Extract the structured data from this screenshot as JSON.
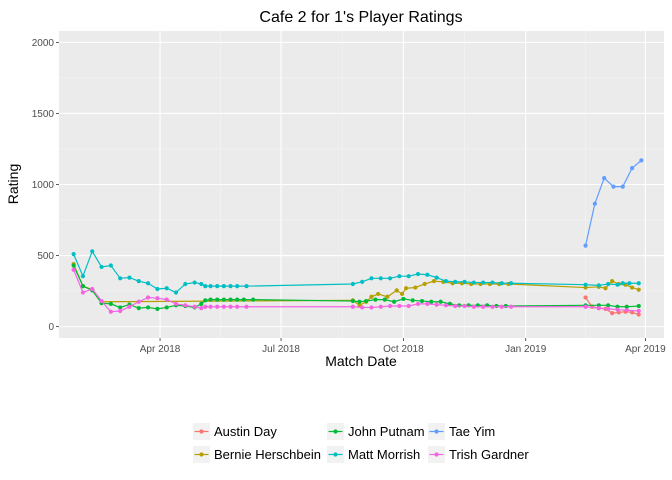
{
  "chart_data": {
    "type": "line",
    "title": "Cafe 2 for 1's Player Ratings",
    "xlabel": "Match Date",
    "ylabel": "Rating",
    "xlim": [
      "2018-01-15",
      "2019-04-15"
    ],
    "ylim": [
      -80,
      2080
    ],
    "x_ticks": [
      {
        "date": "2018-04-01",
        "label": "Apr 2018"
      },
      {
        "date": "2018-07-01",
        "label": "Jul 2018"
      },
      {
        "date": "2018-10-01",
        "label": "Oct 2018"
      },
      {
        "date": "2019-01-01",
        "label": "Jan 2019"
      },
      {
        "date": "2019-04-01",
        "label": "Apr 2019"
      }
    ],
    "y_ticks": [
      0,
      500,
      1000,
      1500,
      2000
    ],
    "grid": true,
    "legend_position": "bottom",
    "series": [
      {
        "name": "Austin Day",
        "color": "#F8766D",
        "points": [
          [
            "2019-02-15",
            205
          ],
          [
            "2019-02-20",
            140
          ],
          [
            "2019-02-25",
            130
          ],
          [
            "2019-03-02",
            125
          ],
          [
            "2019-03-07",
            95
          ],
          [
            "2019-03-12",
            100
          ],
          [
            "2019-03-17",
            105
          ],
          [
            "2019-03-22",
            100
          ],
          [
            "2019-03-27",
            85
          ]
        ]
      },
      {
        "name": "Bernie Herschbein",
        "color": "#B79F00",
        "points": [
          [
            "2018-01-26",
            440
          ],
          [
            "2018-02-02",
            285
          ],
          [
            "2018-02-09",
            260
          ],
          [
            "2018-02-16",
            175
          ],
          [
            "2018-08-24",
            185
          ],
          [
            "2018-08-29",
            150
          ],
          [
            "2018-09-03",
            175
          ],
          [
            "2018-09-07",
            210
          ],
          [
            "2018-09-12",
            230
          ],
          [
            "2018-09-19",
            210
          ],
          [
            "2018-09-26",
            255
          ],
          [
            "2018-09-30",
            230
          ],
          [
            "2018-10-03",
            270
          ],
          [
            "2018-10-10",
            275
          ],
          [
            "2018-10-17",
            300
          ],
          [
            "2018-10-24",
            320
          ],
          [
            "2018-10-31",
            315
          ],
          [
            "2018-11-07",
            305
          ],
          [
            "2018-11-14",
            305
          ],
          [
            "2018-11-21",
            300
          ],
          [
            "2018-11-28",
            300
          ],
          [
            "2018-12-05",
            300
          ],
          [
            "2018-12-12",
            300
          ],
          [
            "2018-12-19",
            300
          ],
          [
            "2019-02-15",
            275
          ],
          [
            "2019-02-25",
            280
          ],
          [
            "2019-03-02",
            270
          ],
          [
            "2019-03-07",
            320
          ],
          [
            "2019-03-12",
            300
          ],
          [
            "2019-03-17",
            295
          ],
          [
            "2019-03-22",
            275
          ],
          [
            "2019-03-27",
            260
          ]
        ]
      },
      {
        "name": "John Putnam",
        "color": "#00BA38",
        "points": [
          [
            "2018-01-26",
            430
          ],
          [
            "2018-02-02",
            285
          ],
          [
            "2018-02-09",
            255
          ],
          [
            "2018-02-16",
            165
          ],
          [
            "2018-02-23",
            160
          ],
          [
            "2018-03-02",
            135
          ],
          [
            "2018-03-09",
            155
          ],
          [
            "2018-03-16",
            130
          ],
          [
            "2018-03-23",
            135
          ],
          [
            "2018-03-30",
            125
          ],
          [
            "2018-04-06",
            135
          ],
          [
            "2018-04-13",
            150
          ],
          [
            "2018-04-20",
            145
          ],
          [
            "2018-04-27",
            135
          ],
          [
            "2018-05-02",
            160
          ],
          [
            "2018-05-05",
            185
          ],
          [
            "2018-05-09",
            190
          ],
          [
            "2018-05-14",
            190
          ],
          [
            "2018-05-19",
            190
          ],
          [
            "2018-05-24",
            190
          ],
          [
            "2018-05-29",
            190
          ],
          [
            "2018-06-03",
            190
          ],
          [
            "2018-06-10",
            190
          ],
          [
            "2018-08-24",
            180
          ],
          [
            "2018-08-29",
            175
          ],
          [
            "2018-09-03",
            180
          ],
          [
            "2018-09-10",
            190
          ],
          [
            "2018-09-17",
            190
          ],
          [
            "2018-09-24",
            175
          ],
          [
            "2018-10-01",
            195
          ],
          [
            "2018-10-08",
            185
          ],
          [
            "2018-10-15",
            180
          ],
          [
            "2018-10-22",
            175
          ],
          [
            "2018-10-29",
            175
          ],
          [
            "2018-11-05",
            160
          ],
          [
            "2018-11-12",
            150
          ],
          [
            "2018-11-19",
            150
          ],
          [
            "2018-11-26",
            150
          ],
          [
            "2018-12-03",
            150
          ],
          [
            "2018-12-10",
            145
          ],
          [
            "2018-12-17",
            145
          ],
          [
            "2019-02-15",
            150
          ],
          [
            "2019-02-25",
            150
          ],
          [
            "2019-03-04",
            150
          ],
          [
            "2019-03-11",
            140
          ],
          [
            "2019-03-18",
            140
          ],
          [
            "2019-03-27",
            145
          ]
        ]
      },
      {
        "name": "Matt Morrish",
        "color": "#00BFC4",
        "points": [
          [
            "2018-01-26",
            510
          ],
          [
            "2018-02-02",
            355
          ],
          [
            "2018-02-09",
            530
          ],
          [
            "2018-02-16",
            420
          ],
          [
            "2018-02-23",
            430
          ],
          [
            "2018-03-02",
            340
          ],
          [
            "2018-03-09",
            345
          ],
          [
            "2018-03-16",
            320
          ],
          [
            "2018-03-23",
            305
          ],
          [
            "2018-03-30",
            265
          ],
          [
            "2018-04-06",
            270
          ],
          [
            "2018-04-13",
            240
          ],
          [
            "2018-04-20",
            300
          ],
          [
            "2018-04-27",
            310
          ],
          [
            "2018-05-02",
            300
          ],
          [
            "2018-05-05",
            285
          ],
          [
            "2018-05-09",
            285
          ],
          [
            "2018-05-14",
            285
          ],
          [
            "2018-05-19",
            285
          ],
          [
            "2018-05-24",
            285
          ],
          [
            "2018-05-29",
            285
          ],
          [
            "2018-06-05",
            285
          ],
          [
            "2018-08-24",
            300
          ],
          [
            "2018-08-31",
            315
          ],
          [
            "2018-09-07",
            340
          ],
          [
            "2018-09-14",
            340
          ],
          [
            "2018-09-21",
            340
          ],
          [
            "2018-09-28",
            355
          ],
          [
            "2018-10-05",
            355
          ],
          [
            "2018-10-12",
            370
          ],
          [
            "2018-10-19",
            365
          ],
          [
            "2018-10-26",
            345
          ],
          [
            "2018-11-02",
            320
          ],
          [
            "2018-11-09",
            315
          ],
          [
            "2018-11-16",
            315
          ],
          [
            "2018-11-23",
            310
          ],
          [
            "2018-11-30",
            310
          ],
          [
            "2018-12-07",
            310
          ],
          [
            "2018-12-14",
            305
          ],
          [
            "2018-12-21",
            305
          ],
          [
            "2019-02-15",
            295
          ],
          [
            "2019-02-25",
            290
          ],
          [
            "2019-03-04",
            300
          ],
          [
            "2019-03-11",
            295
          ],
          [
            "2019-03-15",
            305
          ],
          [
            "2019-03-20",
            305
          ],
          [
            "2019-03-27",
            305
          ]
        ]
      },
      {
        "name": "Tae Yim",
        "color": "#619CFF",
        "points": [
          [
            "2019-02-15",
            570
          ],
          [
            "2019-02-22",
            865
          ],
          [
            "2019-03-01",
            1045
          ],
          [
            "2019-03-08",
            985
          ],
          [
            "2019-03-15",
            985
          ],
          [
            "2019-03-22",
            1115
          ],
          [
            "2019-03-29",
            1170
          ]
        ]
      },
      {
        "name": "Trish Gardner",
        "color": "#F564E3",
        "points": [
          [
            "2018-01-26",
            400
          ],
          [
            "2018-02-02",
            240
          ],
          [
            "2018-02-09",
            265
          ],
          [
            "2018-02-16",
            180
          ],
          [
            "2018-02-23",
            105
          ],
          [
            "2018-03-02",
            110
          ],
          [
            "2018-03-09",
            140
          ],
          [
            "2018-03-16",
            175
          ],
          [
            "2018-03-23",
            205
          ],
          [
            "2018-03-30",
            200
          ],
          [
            "2018-04-06",
            190
          ],
          [
            "2018-04-13",
            160
          ],
          [
            "2018-04-20",
            150
          ],
          [
            "2018-04-27",
            140
          ],
          [
            "2018-05-02",
            130
          ],
          [
            "2018-05-05",
            140
          ],
          [
            "2018-05-09",
            140
          ],
          [
            "2018-05-14",
            140
          ],
          [
            "2018-05-19",
            140
          ],
          [
            "2018-05-24",
            140
          ],
          [
            "2018-05-29",
            140
          ],
          [
            "2018-06-05",
            140
          ],
          [
            "2018-08-24",
            140
          ],
          [
            "2018-08-31",
            135
          ],
          [
            "2018-09-07",
            135
          ],
          [
            "2018-09-14",
            140
          ],
          [
            "2018-09-21",
            145
          ],
          [
            "2018-09-28",
            145
          ],
          [
            "2018-10-05",
            145
          ],
          [
            "2018-10-12",
            160
          ],
          [
            "2018-10-19",
            160
          ],
          [
            "2018-10-26",
            155
          ],
          [
            "2018-11-02",
            150
          ],
          [
            "2018-11-09",
            145
          ],
          [
            "2018-11-16",
            145
          ],
          [
            "2018-11-23",
            140
          ],
          [
            "2018-11-30",
            140
          ],
          [
            "2018-12-07",
            140
          ],
          [
            "2018-12-14",
            140
          ],
          [
            "2018-12-21",
            140
          ],
          [
            "2019-02-15",
            140
          ],
          [
            "2019-02-25",
            130
          ],
          [
            "2019-03-04",
            125
          ],
          [
            "2019-03-11",
            120
          ],
          [
            "2019-03-18",
            115
          ],
          [
            "2019-03-27",
            110
          ]
        ]
      }
    ]
  }
}
